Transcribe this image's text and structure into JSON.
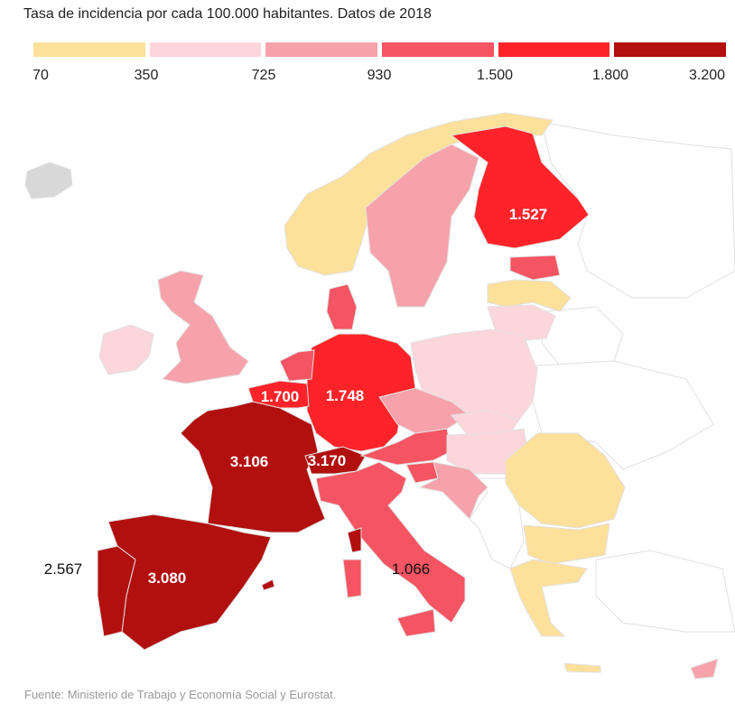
{
  "title": "Tasa de incidencia por cada 100.000 habitantes. Datos de 2018",
  "legend": {
    "colors": [
      "#fde09a",
      "#fdd6dc",
      "#f7a2aa",
      "#f55462",
      "#fe2328",
      "#b20f0f"
    ],
    "ticks": [
      "70",
      "350",
      "725",
      "930",
      "1.500",
      "1.800",
      "3.200"
    ]
  },
  "map_labels": {
    "finland": "1.527",
    "belgium": "1.700",
    "germany": "1.748",
    "france": "3.106",
    "switzerland": "3.170",
    "portugal": "2.567",
    "spain": "3.080",
    "italy": "1.066"
  },
  "source": "Fuente: Ministerio de Trabajo y Economía Social y Eurostat."
}
